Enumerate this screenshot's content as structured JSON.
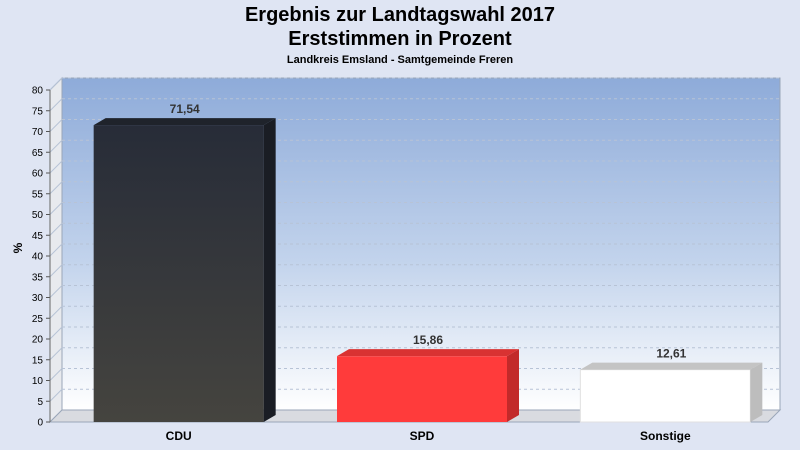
{
  "chart_data": {
    "type": "bar",
    "title": "Ergebnis zur Landtagswahl 2017",
    "subtitle": "Erststimmen in Prozent",
    "caption": "Landkreis Emsland - Samtgemeinde Freren",
    "ylabel": "%",
    "xlabel": "",
    "ylim": [
      0,
      80
    ],
    "yticks": [
      0,
      5,
      10,
      15,
      20,
      25,
      30,
      35,
      40,
      45,
      50,
      55,
      60,
      65,
      70,
      75,
      80
    ],
    "grid": true,
    "categories": [
      "CDU",
      "SPD",
      "Sonstige"
    ],
    "values": [
      71.54,
      15.86,
      12.61
    ],
    "value_labels": [
      "71,54",
      "15,86",
      "12,61"
    ],
    "colors": [
      "#2e3138",
      "#ff3b3b",
      "#ffffff"
    ]
  }
}
